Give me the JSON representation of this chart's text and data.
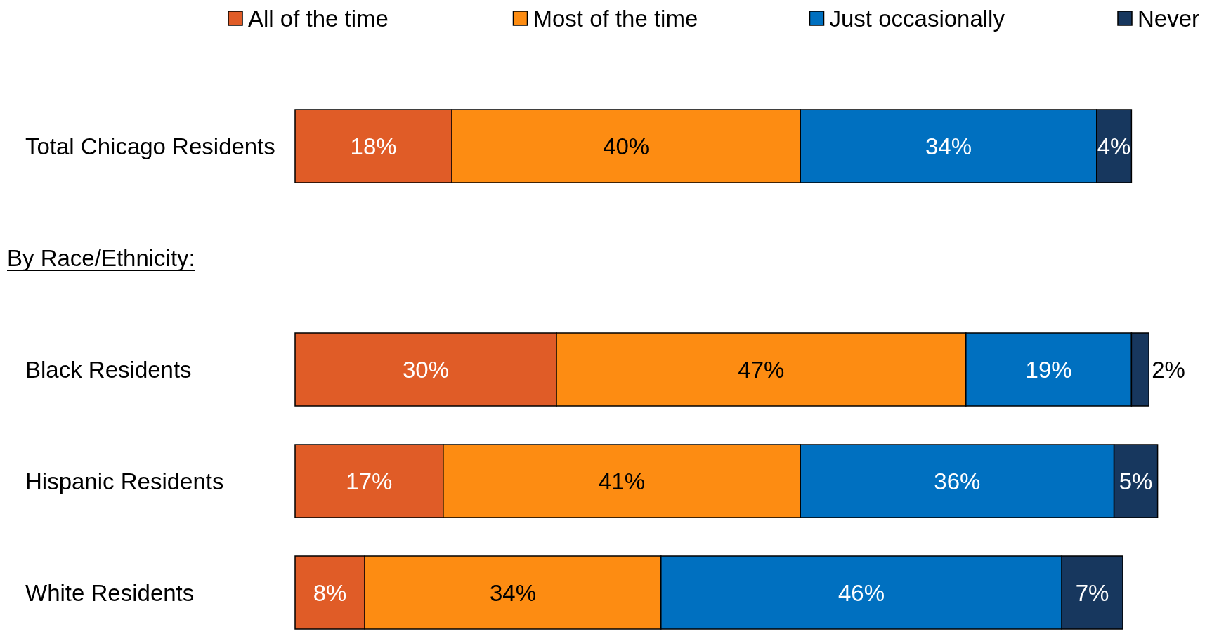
{
  "chart_data": {
    "type": "bar",
    "orientation": "horizontal",
    "stacked": true,
    "categories": [
      "Total Chicago Residents",
      null,
      "Black Residents",
      "Hispanic Residents",
      "White Residents"
    ],
    "annotations": [
      "By Race/Ethnicity:"
    ],
    "series": [
      {
        "name": "All of the time",
        "color": "#e05c27",
        "values": [
          18,
          null,
          30,
          17,
          8
        ],
        "value_labels": [
          "18%",
          null,
          "30%",
          "17%",
          "8%"
        ]
      },
      {
        "name": "Most of the time",
        "color": "#fd8c12",
        "values": [
          40,
          null,
          47,
          41,
          34
        ],
        "value_labels": [
          "40%",
          null,
          "47%",
          "41%",
          "34%"
        ]
      },
      {
        "name": "Just occasionally",
        "color": "#0070c0",
        "values": [
          34,
          null,
          19,
          36,
          46
        ],
        "value_labels": [
          "34%",
          null,
          "19%",
          "36%",
          "46%"
        ]
      },
      {
        "name": "Never",
        "color": "#17375e",
        "values": [
          4,
          null,
          2,
          5,
          7
        ],
        "value_labels": [
          "4%",
          null,
          "2%",
          "5%",
          "7%"
        ]
      }
    ],
    "legend": "top"
  }
}
